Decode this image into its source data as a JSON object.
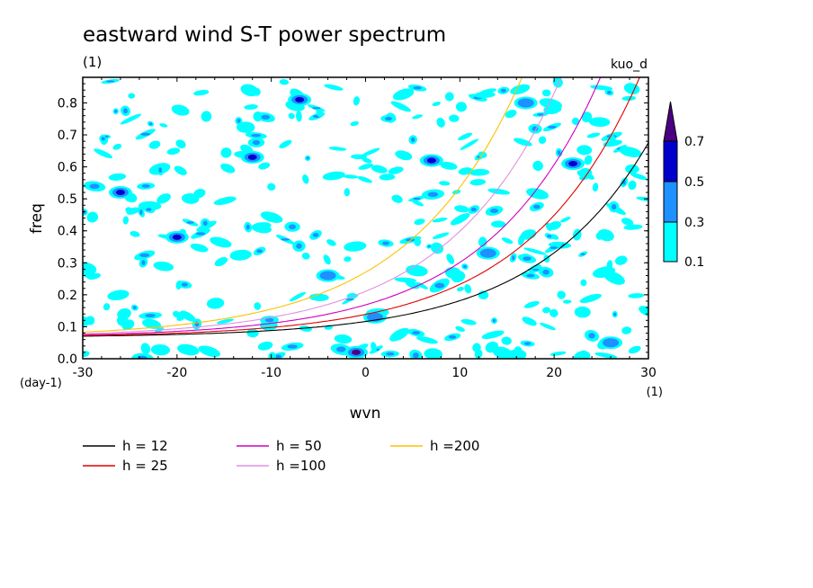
{
  "chart_data": {
    "type": "heatmap",
    "title": "eastward wind S-T power spectrum",
    "subtitle_left": "(1)",
    "subtitle_right": "kuo_d",
    "xlabel": "wvn",
    "ylabel": "freq",
    "x_unit": "(1)",
    "y_unit": "(day-1)",
    "xlim": [
      -30,
      30
    ],
    "ylim": [
      0.0,
      0.88
    ],
    "xticks": [
      -30,
      -20,
      -10,
      0,
      10,
      20,
      30
    ],
    "xtick_labels": [
      "-30",
      "-20",
      "-10",
      "0",
      "10",
      "20",
      "30"
    ],
    "yticks": [
      0.0,
      0.1,
      0.2,
      0.3,
      0.4,
      0.5,
      0.6,
      0.7,
      0.8
    ],
    "ytick_labels": [
      "0.0",
      "0.1",
      "0.2",
      "0.3",
      "0.4",
      "0.5",
      "0.6",
      "0.7",
      "0.8"
    ],
    "colorbar": {
      "levels": [
        "0.1",
        "0.3",
        "0.5",
        "0.7"
      ],
      "colors": [
        "#00ffff",
        "#1e90ff",
        "#0000cd",
        "#4b0082"
      ]
    },
    "series": [
      {
        "name": "h = 12",
        "h": 12,
        "color": "#000000"
      },
      {
        "name": "h = 25",
        "h": 25,
        "color": "#e00000"
      },
      {
        "name": "h = 50",
        "h": 50,
        "color": "#d000c0"
      },
      {
        "name": "h =100",
        "h": 100,
        "color": "#e090e0"
      },
      {
        "name": "h =200",
        "h": 200,
        "color": "#ffc000"
      }
    ],
    "features": [
      {
        "x": -1,
        "y": 0.02,
        "level": 0.7
      },
      {
        "x": -20,
        "y": 0.38,
        "level": 0.5
      },
      {
        "x": -12,
        "y": 0.63,
        "level": 0.5
      },
      {
        "x": -26,
        "y": 0.52,
        "level": 0.5
      },
      {
        "x": -7,
        "y": 0.81,
        "level": 0.5
      },
      {
        "x": 7,
        "y": 0.62,
        "level": 0.5
      },
      {
        "x": 22,
        "y": 0.61,
        "level": 0.5
      },
      {
        "x": 17,
        "y": 0.8,
        "level": 0.3
      },
      {
        "x": 1,
        "y": 0.13,
        "level": 0.3
      },
      {
        "x": 13,
        "y": 0.33,
        "level": 0.3
      },
      {
        "x": -4,
        "y": 0.26,
        "level": 0.3
      },
      {
        "x": 26,
        "y": 0.05,
        "level": 0.3
      }
    ]
  }
}
